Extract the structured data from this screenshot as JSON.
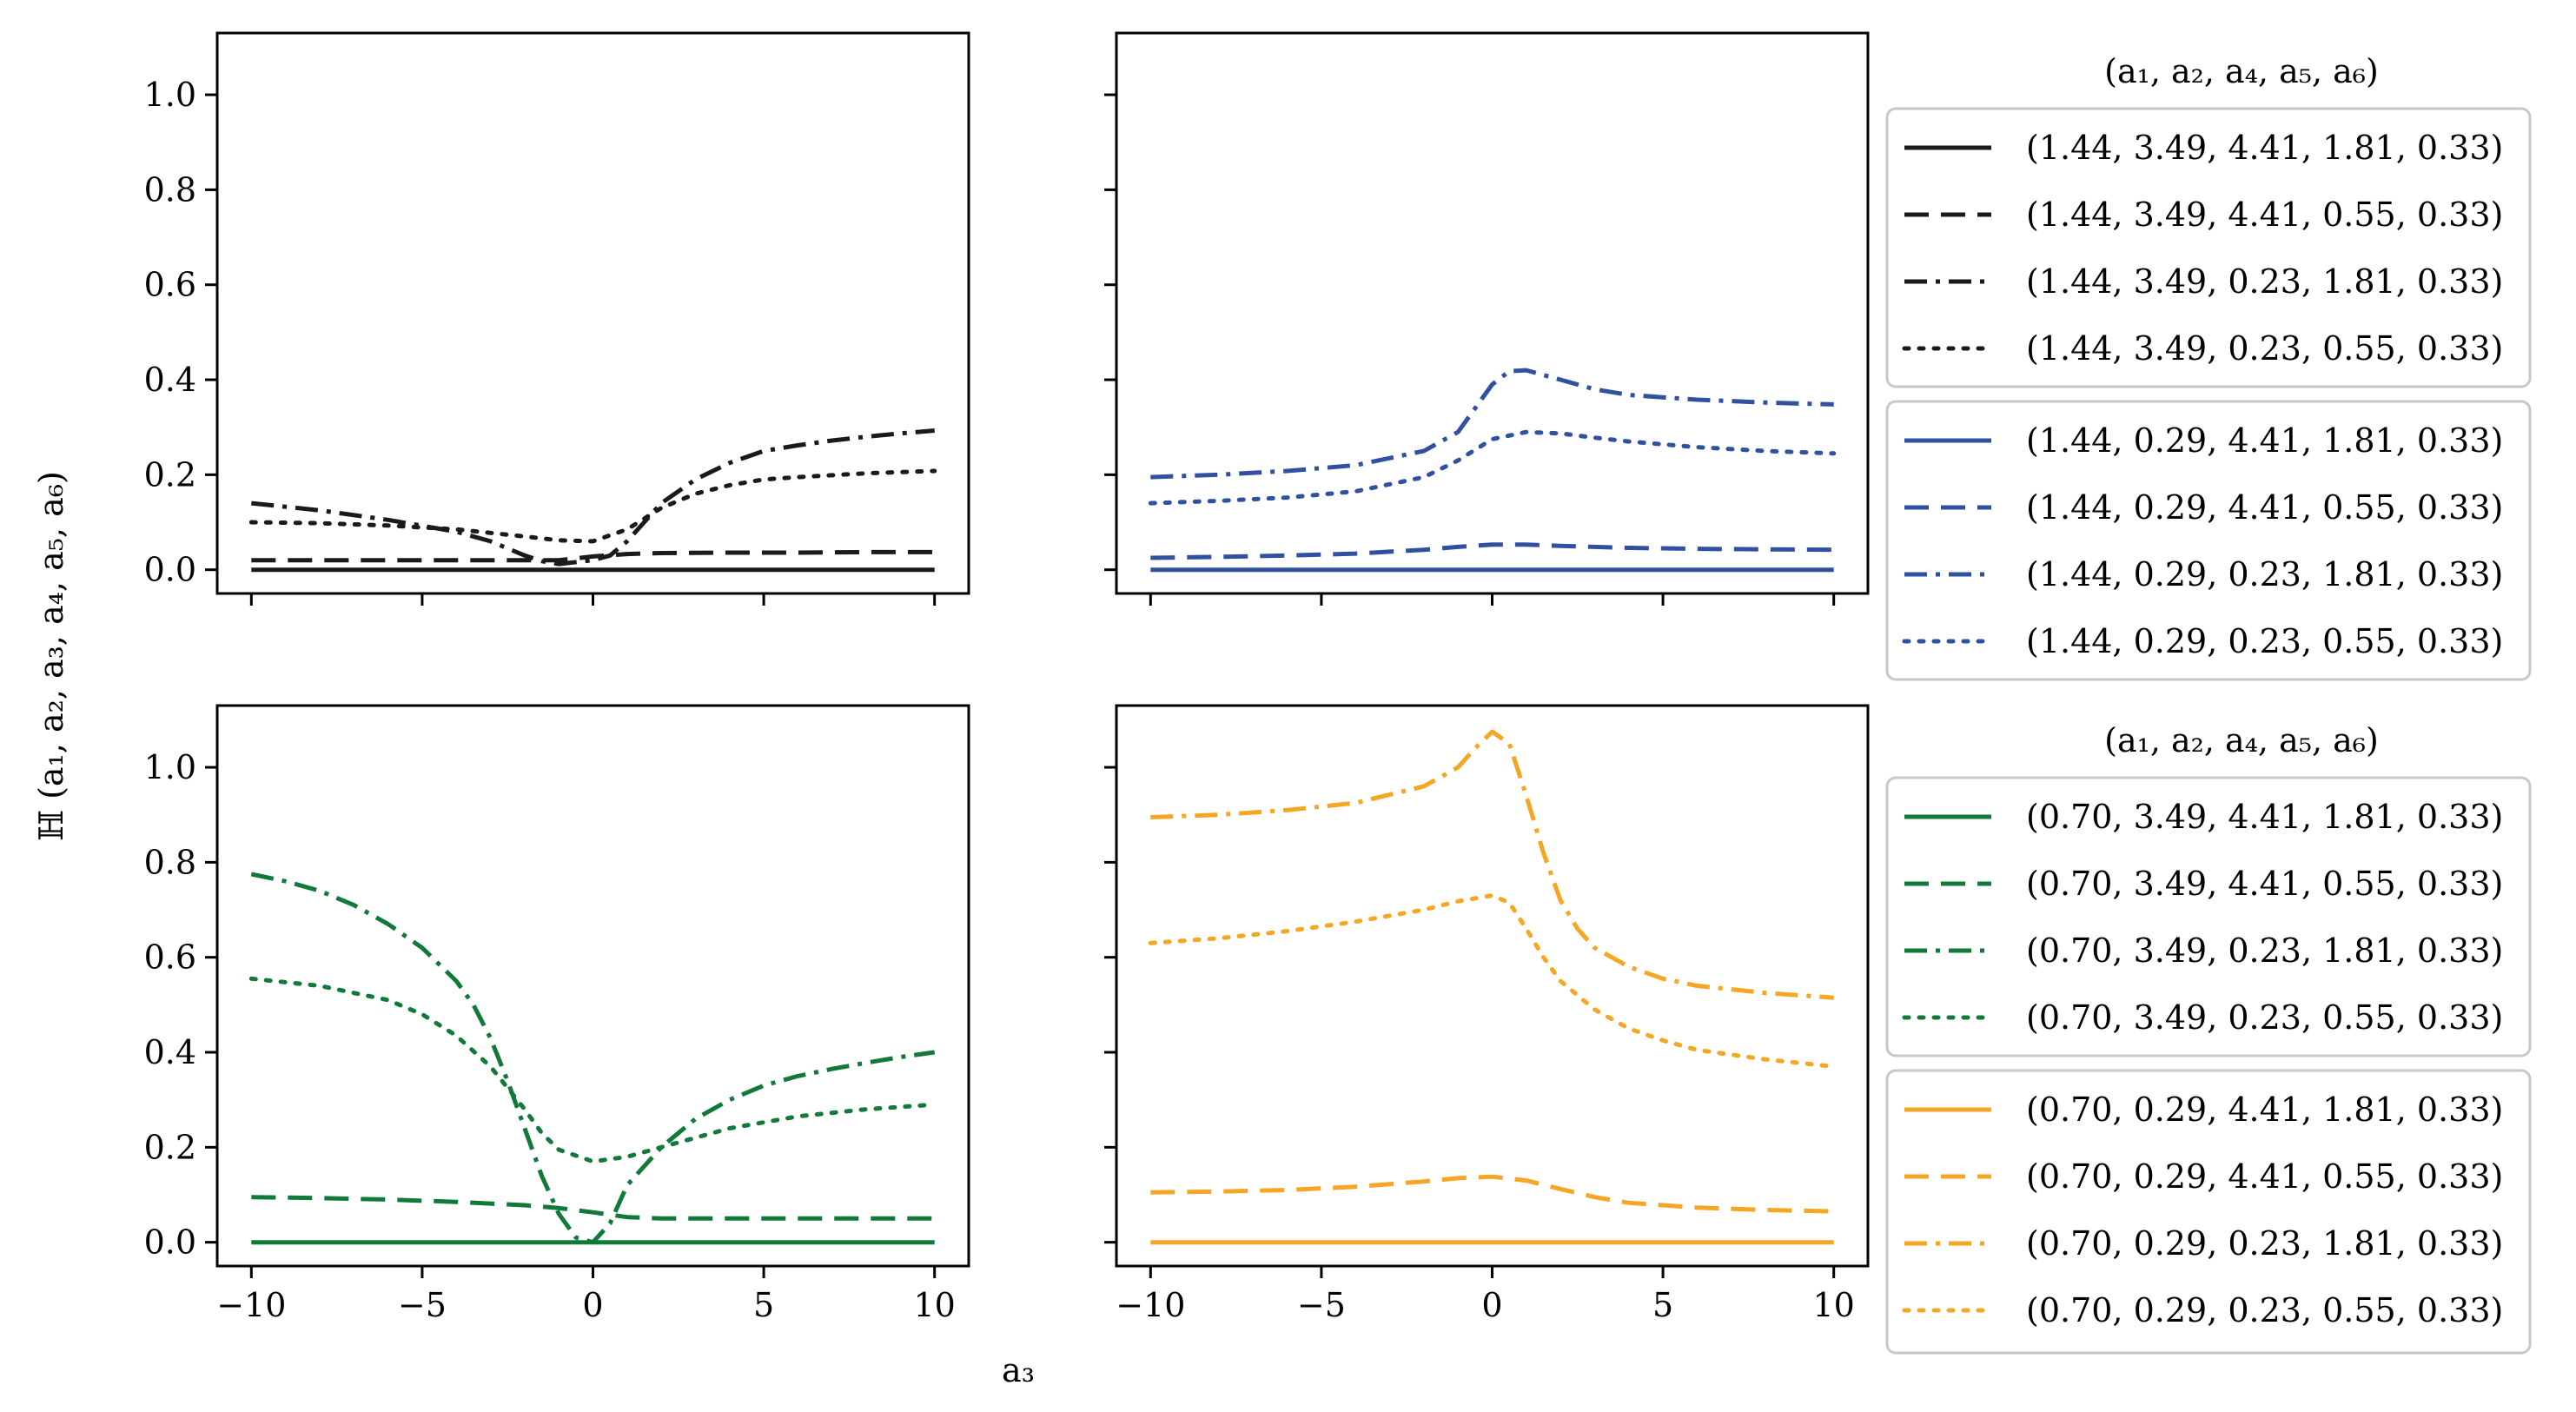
{
  "figure": {
    "ylabel": "ℍ (a₁, a₂, a₃, a₄, a₅, a₆)",
    "xlabel": "a₃",
    "legend_title_top": "(a₁, a₂, a₄, a₅, a₆)",
    "legend_title_bottom": "(a₁, a₂, a₄, a₅, a₆)"
  },
  "colors": {
    "black": "#1a1a1a",
    "blue": "#3050a0",
    "green": "#117a3a",
    "orange": "#f5a623"
  },
  "chart_data": [
    {
      "type": "line",
      "panel": "top-left",
      "color": "black",
      "xlim": [
        -11,
        11
      ],
      "ylim": [
        -0.05,
        1.13
      ],
      "xticks": [
        -10,
        -5,
        0,
        5,
        10
      ],
      "xtick_labels": [
        "",
        "",
        "",
        "",
        ""
      ],
      "yticks": [
        0.0,
        0.2,
        0.4,
        0.6,
        0.8,
        1.0
      ],
      "ytick_labels": [
        "0.0",
        "0.2",
        "0.4",
        "0.6",
        "0.8",
        "1.0"
      ],
      "series": [
        {
          "name": "(1.44, 3.49, 4.41, 1.81, 0.33)",
          "style": "solid",
          "x": [
            -10,
            10
          ],
          "y": [
            0.0,
            0.0
          ]
        },
        {
          "name": "(1.44, 3.49, 4.41, 0.55, 0.33)",
          "style": "dashed",
          "x": [
            -10,
            -8,
            -6,
            -4,
            -2,
            -1,
            0,
            1,
            2,
            4,
            6,
            8,
            10
          ],
          "y": [
            0.02,
            0.02,
            0.02,
            0.02,
            0.02,
            0.02,
            0.028,
            0.033,
            0.035,
            0.036,
            0.036,
            0.037,
            0.037
          ]
        },
        {
          "name": "(1.44, 3.49, 0.23, 1.81, 0.33)",
          "style": "dashdot",
          "x": [
            -10,
            -8,
            -6,
            -4,
            -3,
            -2,
            -1.5,
            -1,
            0,
            0.5,
            1,
            1.5,
            2,
            3,
            4,
            5,
            6,
            7,
            8,
            9,
            10
          ],
          "y": [
            0.14,
            0.125,
            0.105,
            0.08,
            0.06,
            0.03,
            0.018,
            0.012,
            0.02,
            0.03,
            0.06,
            0.1,
            0.14,
            0.19,
            0.225,
            0.25,
            0.262,
            0.272,
            0.28,
            0.287,
            0.293
          ]
        },
        {
          "name": "(1.44, 3.49, 0.23, 0.55, 0.33)",
          "style": "dotted",
          "x": [
            -10,
            -8,
            -6,
            -4,
            -2,
            -1,
            0,
            1,
            2,
            3,
            4,
            5,
            6,
            8,
            10
          ],
          "y": [
            0.1,
            0.098,
            0.093,
            0.085,
            0.07,
            0.062,
            0.06,
            0.085,
            0.13,
            0.16,
            0.178,
            0.19,
            0.195,
            0.203,
            0.208
          ]
        }
      ]
    },
    {
      "type": "line",
      "panel": "top-right",
      "color": "blue",
      "xlim": [
        -11,
        11
      ],
      "ylim": [
        -0.05,
        1.13
      ],
      "xticks": [
        -10,
        -5,
        0,
        5,
        10
      ],
      "xtick_labels": [
        "",
        "",
        "",
        "",
        ""
      ],
      "yticks": [
        0.0,
        0.2,
        0.4,
        0.6,
        0.8,
        1.0
      ],
      "ytick_labels": [
        "",
        "",
        "",
        "",
        "",
        ""
      ],
      "series": [
        {
          "name": "(1.44, 0.29, 4.41, 1.81, 0.33)",
          "style": "solid",
          "x": [
            -10,
            10
          ],
          "y": [
            0.0,
            0.0
          ]
        },
        {
          "name": "(1.44, 0.29, 4.41, 0.55, 0.33)",
          "style": "dashed",
          "x": [
            -10,
            -8,
            -6,
            -4,
            -2,
            -1,
            0,
            1,
            2,
            4,
            6,
            8,
            10
          ],
          "y": [
            0.025,
            0.027,
            0.03,
            0.034,
            0.042,
            0.048,
            0.053,
            0.053,
            0.05,
            0.046,
            0.044,
            0.043,
            0.042
          ]
        },
        {
          "name": "(1.44, 0.29, 0.23, 1.81, 0.33)",
          "style": "dashdot",
          "x": [
            -10,
            -8,
            -6,
            -4,
            -2,
            -1,
            0,
            0.5,
            1,
            2,
            3,
            4,
            6,
            8,
            10
          ],
          "y": [
            0.195,
            0.2,
            0.208,
            0.22,
            0.25,
            0.29,
            0.39,
            0.418,
            0.42,
            0.4,
            0.38,
            0.368,
            0.358,
            0.352,
            0.348
          ]
        },
        {
          "name": "(1.44, 0.29, 0.23, 0.55, 0.33)",
          "style": "dotted",
          "x": [
            -10,
            -8,
            -6,
            -4,
            -2,
            -1,
            0,
            1,
            2,
            3,
            4,
            6,
            8,
            10
          ],
          "y": [
            0.14,
            0.145,
            0.152,
            0.165,
            0.195,
            0.23,
            0.275,
            0.29,
            0.287,
            0.278,
            0.27,
            0.258,
            0.25,
            0.245
          ]
        }
      ]
    },
    {
      "type": "line",
      "panel": "bottom-left",
      "color": "green",
      "xlim": [
        -11,
        11
      ],
      "ylim": [
        -0.05,
        1.13
      ],
      "xticks": [
        -10,
        -5,
        0,
        5,
        10
      ],
      "xtick_labels": [
        "−10",
        "−5",
        "0",
        "5",
        "10"
      ],
      "yticks": [
        0.0,
        0.2,
        0.4,
        0.6,
        0.8,
        1.0
      ],
      "ytick_labels": [
        "0.0",
        "0.2",
        "0.4",
        "0.6",
        "0.8",
        "1.0"
      ],
      "series": [
        {
          "name": "(0.70, 3.49, 4.41, 1.81, 0.33)",
          "style": "solid",
          "x": [
            -10,
            10
          ],
          "y": [
            0.0,
            0.0
          ]
        },
        {
          "name": "(0.70, 3.49, 4.41, 0.55, 0.33)",
          "style": "dashed",
          "x": [
            -10,
            -8,
            -6,
            -4,
            -2,
            -1,
            0,
            1,
            2,
            4,
            6,
            8,
            10
          ],
          "y": [
            0.095,
            0.093,
            0.09,
            0.085,
            0.078,
            0.072,
            0.063,
            0.053,
            0.05,
            0.05,
            0.05,
            0.05,
            0.05
          ]
        },
        {
          "name": "(0.70, 3.49, 0.23, 1.81, 0.33)",
          "style": "dashdot",
          "x": [
            -10,
            -9,
            -8,
            -7,
            -6,
            -5,
            -4,
            -3.5,
            -3,
            -2.5,
            -2,
            -1.5,
            -1,
            -0.5,
            0,
            0.5,
            1,
            2,
            3,
            4,
            5,
            6,
            7,
            8,
            9,
            10
          ],
          "y": [
            0.775,
            0.76,
            0.74,
            0.71,
            0.67,
            0.62,
            0.55,
            0.5,
            0.43,
            0.34,
            0.24,
            0.14,
            0.06,
            0.01,
            0.0,
            0.04,
            0.12,
            0.2,
            0.26,
            0.3,
            0.33,
            0.35,
            0.365,
            0.378,
            0.39,
            0.4
          ]
        },
        {
          "name": "(0.70, 3.49, 0.23, 0.55, 0.33)",
          "style": "dotted",
          "x": [
            -10,
            -8,
            -6,
            -5,
            -4,
            -3,
            -2,
            -1.5,
            -1,
            0,
            1,
            2,
            3,
            4,
            6,
            8,
            10
          ],
          "y": [
            0.555,
            0.54,
            0.51,
            0.48,
            0.435,
            0.37,
            0.28,
            0.23,
            0.195,
            0.17,
            0.18,
            0.2,
            0.22,
            0.24,
            0.265,
            0.28,
            0.29
          ]
        }
      ]
    },
    {
      "type": "line",
      "panel": "bottom-right",
      "color": "orange",
      "xlim": [
        -11,
        11
      ],
      "ylim": [
        -0.05,
        1.13
      ],
      "xticks": [
        -10,
        -5,
        0,
        5,
        10
      ],
      "xtick_labels": [
        "−10",
        "−5",
        "0",
        "5",
        "10"
      ],
      "yticks": [
        0.0,
        0.2,
        0.4,
        0.6,
        0.8,
        1.0
      ],
      "ytick_labels": [
        "",
        "",
        "",
        "",
        "",
        ""
      ],
      "series": [
        {
          "name": "(0.70, 0.29, 4.41, 1.81, 0.33)",
          "style": "solid",
          "x": [
            -10,
            10
          ],
          "y": [
            0.0,
            0.0
          ]
        },
        {
          "name": "(0.70, 0.29, 4.41, 0.55, 0.33)",
          "style": "dashed",
          "x": [
            -10,
            -8,
            -6,
            -4,
            -2,
            -1,
            0,
            1,
            2,
            3,
            4,
            6,
            8,
            10
          ],
          "y": [
            0.105,
            0.107,
            0.11,
            0.117,
            0.128,
            0.135,
            0.138,
            0.13,
            0.112,
            0.095,
            0.083,
            0.073,
            0.068,
            0.065
          ]
        },
        {
          "name": "(0.70, 0.29, 0.23, 1.81, 0.33)",
          "style": "dashdot",
          "x": [
            -10,
            -8,
            -6,
            -4,
            -2,
            -1,
            -0.5,
            0,
            0.5,
            1,
            1.5,
            2,
            2.5,
            3,
            4,
            5,
            6,
            8,
            10
          ],
          "y": [
            0.895,
            0.9,
            0.91,
            0.925,
            0.96,
            1.0,
            1.04,
            1.075,
            1.05,
            0.94,
            0.82,
            0.72,
            0.66,
            0.62,
            0.58,
            0.555,
            0.54,
            0.525,
            0.515
          ]
        },
        {
          "name": "(0.70, 0.29, 0.23, 0.55, 0.33)",
          "style": "dotted",
          "x": [
            -10,
            -8,
            -6,
            -4,
            -2,
            -1,
            0,
            0.5,
            1,
            1.5,
            2,
            3,
            4,
            5,
            6,
            8,
            10
          ],
          "y": [
            0.63,
            0.64,
            0.655,
            0.675,
            0.7,
            0.718,
            0.73,
            0.715,
            0.66,
            0.6,
            0.55,
            0.49,
            0.45,
            0.425,
            0.405,
            0.385,
            0.37
          ]
        }
      ]
    }
  ]
}
